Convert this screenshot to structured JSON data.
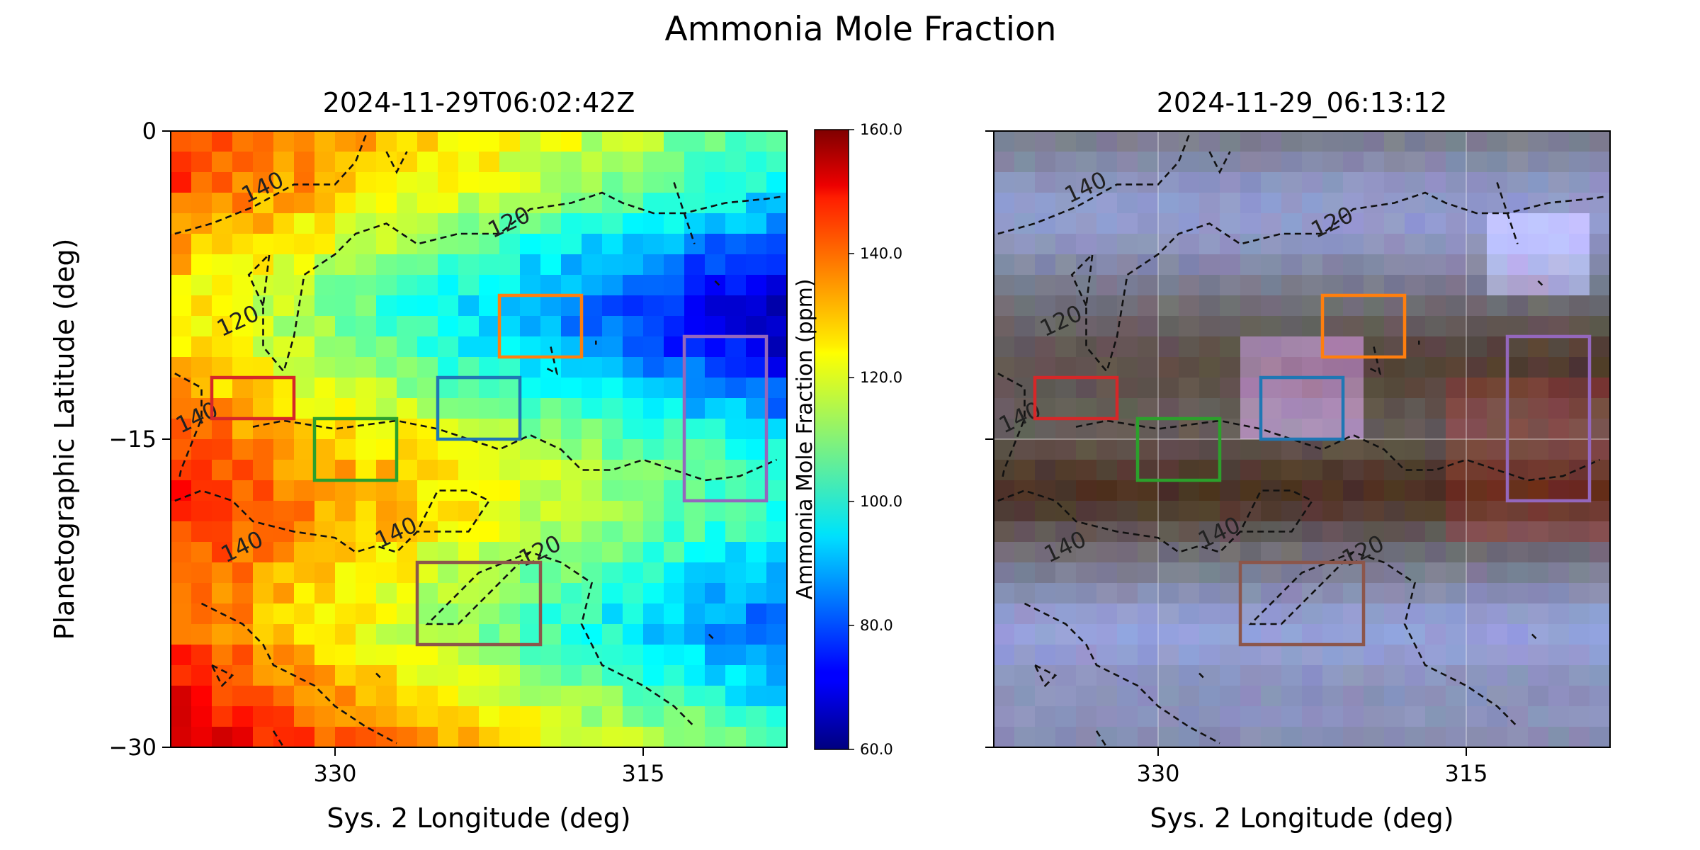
{
  "figure": {
    "suptitle": "Ammonia Mole Fraction"
  },
  "chart_data": [
    {
      "type": "heatmap",
      "panel": "left",
      "title": "2024-11-29T06:02:42Z",
      "xlabel": "Sys. 2 Longitude (deg)",
      "ylabel": "Planetographic Latitude (deg)",
      "xlim": [
        338,
        308
      ],
      "ylim": [
        -30,
        0
      ],
      "xticks": [
        330,
        315
      ],
      "yticks": [
        0,
        -15,
        -30
      ],
      "ytick_labels": [
        "0",
        "−15",
        "−30"
      ],
      "grid": false,
      "colormap": "jet",
      "cell_size_deg": 1,
      "field_model": {
        "description": "ammonia mole fraction (ppm) per 1-degree cell, gridded lat 0..-30, lon 338..308",
        "high_values_west": true,
        "band_minimum_lat": -9,
        "band_secondary_lat": -24
      },
      "colorbar": {
        "label": "Ammonia Mole Fraction (ppm)",
        "vmin": 60.0,
        "vmax": 160.0,
        "ticks": [
          60.0,
          80.0,
          100.0,
          120.0,
          140.0,
          160.0
        ],
        "tick_labels": [
          "60.0",
          "80.0",
          "100.0",
          "120.0",
          "140.0",
          "160.0"
        ]
      },
      "contour_levels": [
        120,
        140
      ],
      "contour_labels": [
        {
          "text": "140",
          "lon": 333.5,
          "lat": -2.8
        },
        {
          "text": "120",
          "lon": 321.5,
          "lat": -4.5
        },
        {
          "text": "120",
          "lon": 334.7,
          "lat": -9.3
        },
        {
          "text": "140",
          "lon": 336.7,
          "lat": -14.0
        },
        {
          "text": "140",
          "lon": 334.5,
          "lat": -20.3
        },
        {
          "text": "140",
          "lon": 327.0,
          "lat": -19.6
        },
        {
          "text": "120",
          "lon": 320.0,
          "lat": -20.5
        }
      ],
      "regions": [
        {
          "name": "red",
          "color": "#d62728",
          "lon": [
            336,
            332
          ],
          "lat": [
            -12,
            -14
          ]
        },
        {
          "name": "green",
          "color": "#2ca02c",
          "lon": [
            331,
            327
          ],
          "lat": [
            -14,
            -17
          ]
        },
        {
          "name": "blue",
          "color": "#1f77b4",
          "lon": [
            325,
            321
          ],
          "lat": [
            -12,
            -15
          ]
        },
        {
          "name": "orange",
          "color": "#ff7f0e",
          "lon": [
            322,
            318
          ],
          "lat": [
            -8,
            -11
          ]
        },
        {
          "name": "purple",
          "color": "#9467bd",
          "lon": [
            313,
            309
          ],
          "lat": [
            -10,
            -18
          ]
        },
        {
          "name": "brown",
          "color": "#8c564b",
          "lon": [
            326,
            320
          ],
          "lat": [
            -21,
            -25
          ]
        }
      ]
    },
    {
      "type": "heatmap",
      "panel": "right",
      "title": "2024-11-29_06:13:12",
      "xlabel": "Sys. 2 Longitude (deg)",
      "xlim": [
        338,
        308
      ],
      "ylim": [
        -30,
        0
      ],
      "xticks": [
        330,
        315
      ],
      "grid": true,
      "image": "RGB context image with ammonia contour overlay",
      "contour_levels": [
        120,
        140
      ],
      "contour_labels": [
        {
          "text": "140",
          "lon": 333.5,
          "lat": -2.8
        },
        {
          "text": "120",
          "lon": 321.5,
          "lat": -4.5
        },
        {
          "text": "120",
          "lon": 334.7,
          "lat": -9.3
        },
        {
          "text": "140",
          "lon": 336.7,
          "lat": -14.0
        },
        {
          "text": "140",
          "lon": 334.5,
          "lat": -20.3
        },
        {
          "text": "140",
          "lon": 327.0,
          "lat": -19.6
        },
        {
          "text": "120",
          "lon": 320.0,
          "lat": -20.5
        }
      ],
      "regions": [
        {
          "name": "red",
          "color": "#d62728",
          "lon": [
            336,
            332
          ],
          "lat": [
            -12,
            -14
          ]
        },
        {
          "name": "green",
          "color": "#2ca02c",
          "lon": [
            331,
            327
          ],
          "lat": [
            -14,
            -17
          ]
        },
        {
          "name": "blue",
          "color": "#1f77b4",
          "lon": [
            325,
            321
          ],
          "lat": [
            -12,
            -15
          ]
        },
        {
          "name": "orange",
          "color": "#ff7f0e",
          "lon": [
            322,
            318
          ],
          "lat": [
            -8,
            -11
          ]
        },
        {
          "name": "purple",
          "color": "#9467bd",
          "lon": [
            313,
            309
          ],
          "lat": [
            -10,
            -18
          ]
        },
        {
          "name": "brown",
          "color": "#8c564b",
          "lon": [
            326,
            320
          ],
          "lat": [
            -21,
            -25
          ]
        }
      ]
    }
  ]
}
